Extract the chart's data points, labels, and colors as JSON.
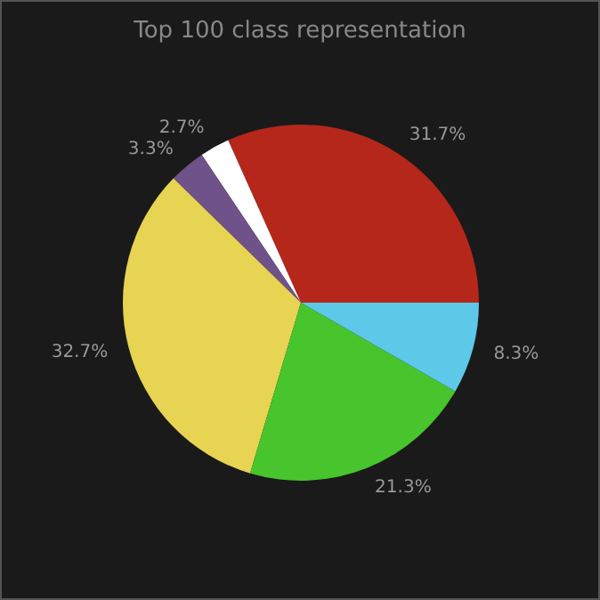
{
  "chart_data": {
    "type": "pie",
    "title": "Top 100 class representation",
    "categories": [
      null,
      null,
      null,
      null,
      null,
      null
    ],
    "values": [
      31.7,
      2.7,
      3.3,
      32.7,
      21.3,
      8.3
    ],
    "value_labels": [
      "31.7%",
      "2.7%",
      "3.3%",
      "32.7%",
      "21.3%",
      "8.3%"
    ],
    "colors": [
      "#b5271b",
      "#ffffff",
      "#6f528a",
      "#e6d452",
      "#48c42d",
      "#5ec8e8"
    ]
  }
}
